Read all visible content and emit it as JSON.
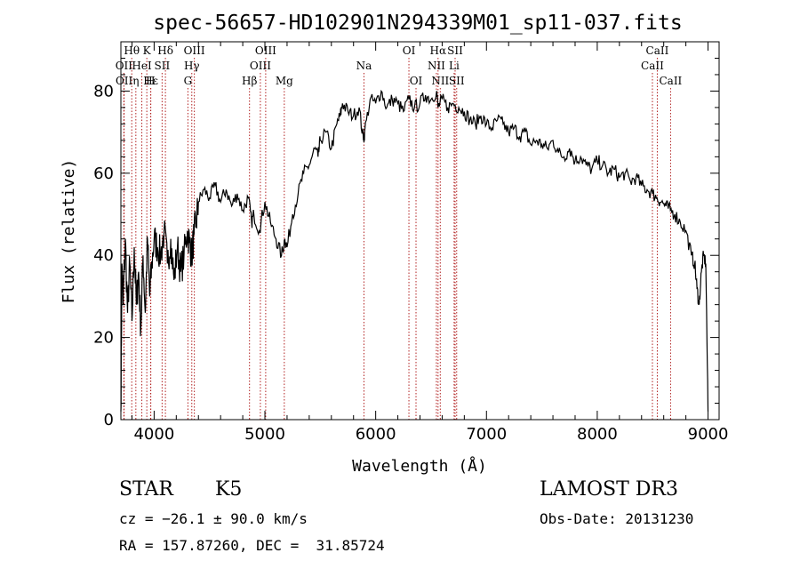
{
  "chart_data": {
    "type": "line",
    "title": "spec-56657-HD102901N294339M01_sp11-037.fits",
    "xlabel": "Wavelength (Å)",
    "ylabel": "Flux (relative)",
    "xlim": [
      3700,
      9100
    ],
    "ylim": [
      0,
      92
    ],
    "xticks": [
      4000,
      5000,
      6000,
      7000,
      8000,
      9000
    ],
    "yticks": [
      0,
      20,
      40,
      60,
      80
    ],
    "grid": false,
    "line_color": "#000000",
    "marker_color": "#b22222",
    "series": [
      {
        "x": [
          3700,
          3710,
          3720,
          3740,
          3760,
          3780,
          3800,
          3820,
          3840,
          3860,
          3880,
          3900,
          3920,
          3940,
          3960,
          3980,
          4000,
          4030,
          4060,
          4090,
          4120,
          4150,
          4180,
          4210,
          4240,
          4270,
          4300,
          4320,
          4340,
          4360,
          4380,
          4400,
          4450,
          4500,
          4550,
          4600,
          4650,
          4700,
          4750,
          4800,
          4850,
          4880,
          4900,
          4950,
          5000,
          5050,
          5100,
          5150,
          5180,
          5200,
          5250,
          5300,
          5350,
          5400,
          5450,
          5480,
          5500,
          5550,
          5600,
          5650,
          5680,
          5700,
          5750,
          5800,
          5850,
          5890,
          5900,
          5950,
          6000,
          6050,
          6100,
          6150,
          6200,
          6250,
          6300,
          6350,
          6400,
          6450,
          6500,
          6550,
          6563,
          6600,
          6650,
          6700,
          6750,
          6800,
          6850,
          6900,
          6950,
          7000,
          7050,
          7100,
          7150,
          7200,
          7250,
          7300,
          7350,
          7400,
          7450,
          7500,
          7550,
          7600,
          7650,
          7700,
          7750,
          7800,
          7850,
          7900,
          7950,
          8000,
          8050,
          8100,
          8150,
          8200,
          8250,
          8300,
          8350,
          8400,
          8450,
          8500,
          8540,
          8580,
          8620,
          8660,
          8700,
          8750,
          8800,
          8850,
          8880,
          8900,
          8920,
          8940,
          8960,
          8980,
          9000
        ],
        "values": [
          2,
          38,
          28,
          44,
          26,
          38,
          24,
          42,
          28,
          36,
          22,
          40,
          26,
          44,
          30,
          38,
          44,
          42,
          40,
          46,
          38,
          44,
          34,
          42,
          36,
          40,
          46,
          43,
          40,
          45,
          48,
          53,
          56,
          54,
          57,
          53,
          56,
          52,
          55,
          51,
          54,
          48,
          50,
          46,
          53,
          48,
          44,
          40,
          44,
          42,
          50,
          55,
          60,
          62,
          66,
          64,
          68,
          70,
          66,
          72,
          74,
          77,
          75,
          74,
          76,
          68,
          70,
          78,
          77,
          80,
          76,
          78,
          77,
          75,
          78,
          76,
          77,
          79,
          78,
          80,
          76,
          78,
          76,
          77,
          76,
          75,
          73,
          72,
          74,
          72,
          71,
          73,
          72,
          70,
          71,
          69,
          70,
          67,
          68,
          67,
          66,
          68,
          65,
          64,
          66,
          63,
          64,
          62,
          61,
          63,
          62,
          60,
          61,
          59,
          60,
          58,
          59,
          57,
          56,
          55,
          54,
          53,
          52,
          51,
          50,
          48,
          46,
          40,
          38,
          32,
          28,
          36,
          40,
          38,
          2
        ]
      }
    ],
    "line_markers": [
      {
        "label": "Hθ",
        "x": 3798,
        "row": 1
      },
      {
        "label": "OII",
        "x": 3727,
        "row": 2
      },
      {
        "label": "OII",
        "x": 3729,
        "row": 3
      },
      {
        "label": "K",
        "x": 3934,
        "row": 1
      },
      {
        "label": "Hε",
        "x": 3970,
        "row": 3
      },
      {
        "label": "HeI",
        "x": 3889,
        "row": 2
      },
      {
        "label": "η",
        "x": 3835,
        "row": 3
      },
      {
        "label": "H",
        "x": 3968,
        "row": 3
      },
      {
        "label": "SII",
        "x": 4072,
        "row": 2
      },
      {
        "label": "Hδ",
        "x": 4102,
        "row": 1
      },
      {
        "label": "OIII",
        "x": 4363,
        "row": 1
      },
      {
        "label": "Hγ",
        "x": 4340,
        "row": 2
      },
      {
        "label": "G",
        "x": 4305,
        "row": 3
      },
      {
        "label": "Hβ",
        "x": 4861,
        "row": 3
      },
      {
        "label": "OIII",
        "x": 4959,
        "row": 2
      },
      {
        "label": "OIII",
        "x": 5007,
        "row": 1
      },
      {
        "label": "Mg",
        "x": 5175,
        "row": 3
      },
      {
        "label": "Na",
        "x": 5894,
        "row": 2
      },
      {
        "label": "OI",
        "x": 6300,
        "row": 1
      },
      {
        "label": "OI",
        "x": 6364,
        "row": 3
      },
      {
        "label": "Hα",
        "x": 6563,
        "row": 1
      },
      {
        "label": "NII",
        "x": 6548,
        "row": 2
      },
      {
        "label": "NII",
        "x": 6583,
        "row": 3
      },
      {
        "label": "SII",
        "x": 6717,
        "row": 1
      },
      {
        "label": "Li",
        "x": 6708,
        "row": 2
      },
      {
        "label": "SII",
        "x": 6731,
        "row": 3
      },
      {
        "label": "CaII",
        "x": 8542,
        "row": 1
      },
      {
        "label": "CaII",
        "x": 8498,
        "row": 2
      },
      {
        "label": "CaII",
        "x": 8662,
        "row": 3
      }
    ]
  },
  "info": {
    "object_class": "STAR",
    "subclass": "K5",
    "survey": "LAMOST DR3",
    "cz_line": "cz = −26.1 ± 90.0 km/s",
    "obs_date": "Obs-Date: 20131230",
    "coords_line": "RA = 157.87260, DEC =  31.85724"
  }
}
